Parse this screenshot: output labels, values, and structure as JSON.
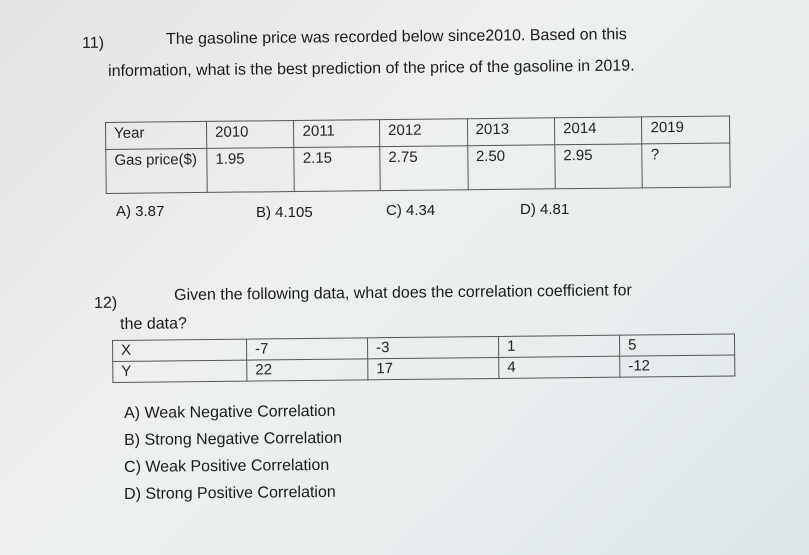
{
  "q11": {
    "number": "11)",
    "line1": "The gasoline price was recorded below since2010. Based on this",
    "line2": "information, what is the best prediction of the price of the gasoline in 2019.",
    "table": {
      "row1": [
        "Year",
        "2010",
        "2011",
        "2012",
        "2013",
        "2014",
        "2019"
      ],
      "row2": [
        "Gas price($)",
        "1.95",
        "2.15",
        "2.75",
        "2.50",
        "2.95",
        "?"
      ]
    },
    "choices": [
      "A)  3.87",
      "B) 4.105",
      "C) 4.34",
      "D) 4.81"
    ]
  },
  "q12": {
    "number": "12)",
    "line1": "Given the following data, what does the correlation coefficient for",
    "line2": "the data?",
    "table": {
      "row1": [
        "X",
        "-7",
        "-3",
        "1",
        "5"
      ],
      "row2": [
        "Y",
        "22",
        "17",
        "4",
        "-12"
      ]
    },
    "choices": [
      "A) Weak Negative Correlation",
      "B) Strong Negative Correlation",
      "C) Weak Positive Correlation",
      "D) Strong Positive Correlation"
    ]
  }
}
